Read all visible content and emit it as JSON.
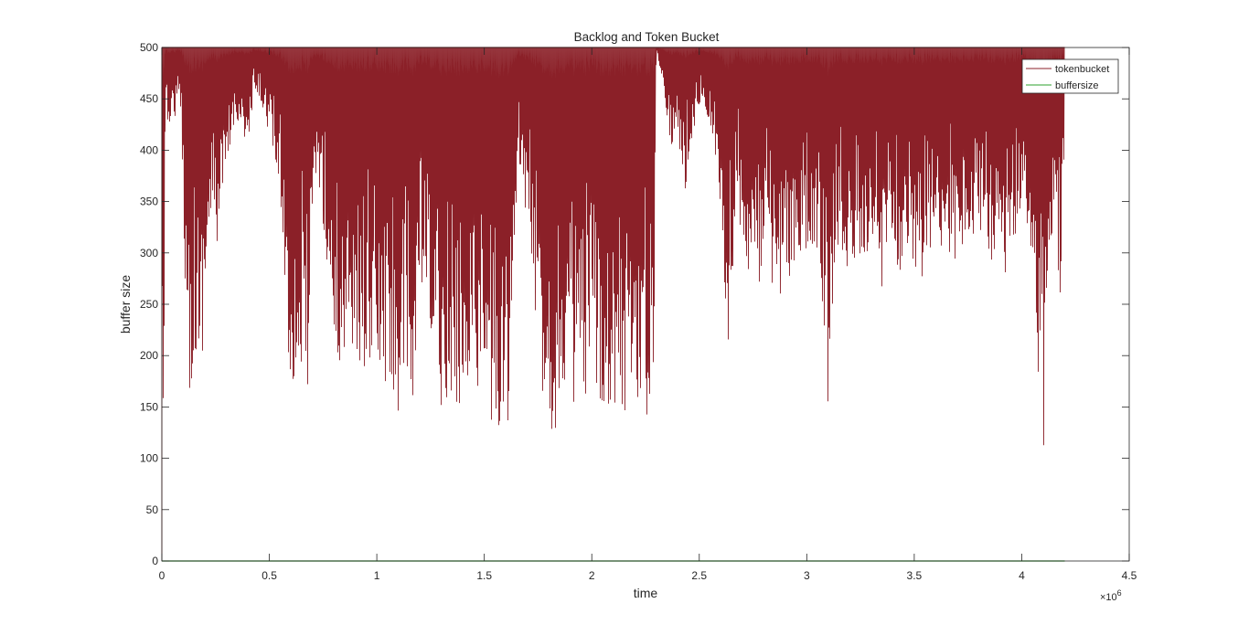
{
  "chart_data": {
    "type": "line",
    "title": "Backlog and Token Bucket",
    "xlabel": "time",
    "ylabel": "buffer size",
    "xlim": [
      0,
      4.5
    ],
    "ylim": [
      0,
      500
    ],
    "x_exponent_label": "×10",
    "x_exponent_power": "6",
    "x_ticks": [
      0,
      0.5,
      1,
      1.5,
      2,
      2.5,
      3,
      3.5,
      4,
      4.5
    ],
    "x_tick_labels": [
      "0",
      "0.5",
      "1",
      "1.5",
      "2",
      "2.5",
      "3",
      "3.5",
      "4",
      "4.5"
    ],
    "y_ticks": [
      0,
      50,
      100,
      150,
      200,
      250,
      300,
      350,
      400,
      450,
      500
    ],
    "y_tick_labels": [
      "0",
      "50",
      "100",
      "150",
      "200",
      "250",
      "300",
      "350",
      "400",
      "450",
      "500"
    ],
    "grid": false,
    "legend_position": "top-right",
    "series": [
      {
        "name": "tokenbucket",
        "color": "#8b2028",
        "x_range": [
          0,
          4.2
        ],
        "min_envelope": [
          [
            0.0,
            0
          ],
          [
            0.02,
            420
          ],
          [
            0.05,
            430
          ],
          [
            0.09,
            440
          ],
          [
            0.11,
            255
          ],
          [
            0.13,
            155
          ],
          [
            0.15,
            205
          ],
          [
            0.18,
            165
          ],
          [
            0.2,
            250
          ],
          [
            0.23,
            330
          ],
          [
            0.26,
            305
          ],
          [
            0.3,
            360
          ],
          [
            0.33,
            420
          ],
          [
            0.36,
            430
          ],
          [
            0.4,
            390
          ],
          [
            0.43,
            455
          ],
          [
            0.47,
            440
          ],
          [
            0.5,
            415
          ],
          [
            0.53,
            380
          ],
          [
            0.56,
            330
          ],
          [
            0.59,
            175
          ],
          [
            0.62,
            165
          ],
          [
            0.65,
            175
          ],
          [
            0.68,
            163
          ],
          [
            0.72,
            380
          ],
          [
            0.75,
            330
          ],
          [
            0.78,
            250
          ],
          [
            0.81,
            190
          ],
          [
            0.84,
            175
          ],
          [
            0.87,
            245
          ],
          [
            0.9,
            163
          ],
          [
            0.93,
            190
          ],
          [
            0.96,
            180
          ],
          [
            0.99,
            200
          ],
          [
            1.02,
            145
          ],
          [
            1.05,
            165
          ],
          [
            1.08,
            160
          ],
          [
            1.11,
            130
          ],
          [
            1.14,
            145
          ],
          [
            1.17,
            135
          ],
          [
            1.2,
            270
          ],
          [
            1.23,
            230
          ],
          [
            1.26,
            190
          ],
          [
            1.29,
            145
          ],
          [
            1.32,
            160
          ],
          [
            1.35,
            150
          ],
          [
            1.38,
            140
          ],
          [
            1.41,
            165
          ],
          [
            1.45,
            190
          ],
          [
            1.48,
            155
          ],
          [
            1.51,
            150
          ],
          [
            1.54,
            125
          ],
          [
            1.57,
            120
          ],
          [
            1.59,
            87
          ],
          [
            1.62,
            160
          ],
          [
            1.66,
            380
          ],
          [
            1.7,
            330
          ],
          [
            1.74,
            230
          ],
          [
            1.77,
            165
          ],
          [
            1.8,
            145
          ],
          [
            1.82,
            113
          ],
          [
            1.86,
            160
          ],
          [
            1.9,
            150
          ],
          [
            1.93,
            150
          ],
          [
            1.97,
            135
          ],
          [
            2.0,
            170
          ],
          [
            2.05,
            150
          ],
          [
            2.1,
            150
          ],
          [
            2.15,
            140
          ],
          [
            2.2,
            165
          ],
          [
            2.23,
            140
          ],
          [
            2.26,
            133
          ],
          [
            2.29,
            190
          ],
          [
            2.3,
            500
          ],
          [
            2.33,
            465
          ],
          [
            2.37,
            400
          ],
          [
            2.4,
            420
          ],
          [
            2.43,
            350
          ],
          [
            2.46,
            400
          ],
          [
            2.49,
            440
          ],
          [
            2.52,
            450
          ],
          [
            2.55,
            420
          ],
          [
            2.58,
            380
          ],
          [
            2.61,
            290
          ],
          [
            2.64,
            195
          ],
          [
            2.67,
            360
          ],
          [
            2.7,
            310
          ],
          [
            2.73,
            275
          ],
          [
            2.76,
            260
          ],
          [
            2.79,
            265
          ],
          [
            2.82,
            305
          ],
          [
            2.85,
            217
          ],
          [
            2.88,
            260
          ],
          [
            2.91,
            280
          ],
          [
            2.94,
            265
          ],
          [
            2.97,
            285
          ],
          [
            3.0,
            290
          ],
          [
            3.03,
            300
          ],
          [
            3.06,
            270
          ],
          [
            3.09,
            185
          ],
          [
            3.1,
            137
          ],
          [
            3.13,
            290
          ],
          [
            3.16,
            300
          ],
          [
            3.2,
            275
          ],
          [
            3.23,
            280
          ],
          [
            3.26,
            290
          ],
          [
            3.29,
            300
          ],
          [
            3.32,
            300
          ],
          [
            3.35,
            260
          ],
          [
            3.38,
            330
          ],
          [
            3.41,
            290
          ],
          [
            3.44,
            265
          ],
          [
            3.47,
            310
          ],
          [
            3.5,
            290
          ],
          [
            3.53,
            238
          ],
          [
            3.56,
            300
          ],
          [
            3.59,
            290
          ],
          [
            3.62,
            310
          ],
          [
            3.65,
            290
          ],
          [
            3.68,
            305
          ],
          [
            3.71,
            260
          ],
          [
            3.74,
            320
          ],
          [
            3.77,
            300
          ],
          [
            3.8,
            330
          ],
          [
            3.83,
            300
          ],
          [
            3.86,
            290
          ],
          [
            3.89,
            320
          ],
          [
            3.92,
            255
          ],
          [
            3.95,
            310
          ],
          [
            3.98,
            320
          ],
          [
            4.01,
            340
          ],
          [
            4.04,
            300
          ],
          [
            4.06,
            230
          ],
          [
            4.08,
            160
          ],
          [
            4.1,
            90
          ],
          [
            4.12,
            240
          ],
          [
            4.15,
            340
          ],
          [
            4.18,
            248
          ],
          [
            4.2,
            360
          ]
        ],
        "max_value": 500
      },
      {
        "name": "buffersize",
        "color": "#2ca02c",
        "x": [
          0,
          4.2
        ],
        "y": [
          0,
          0
        ]
      }
    ]
  }
}
